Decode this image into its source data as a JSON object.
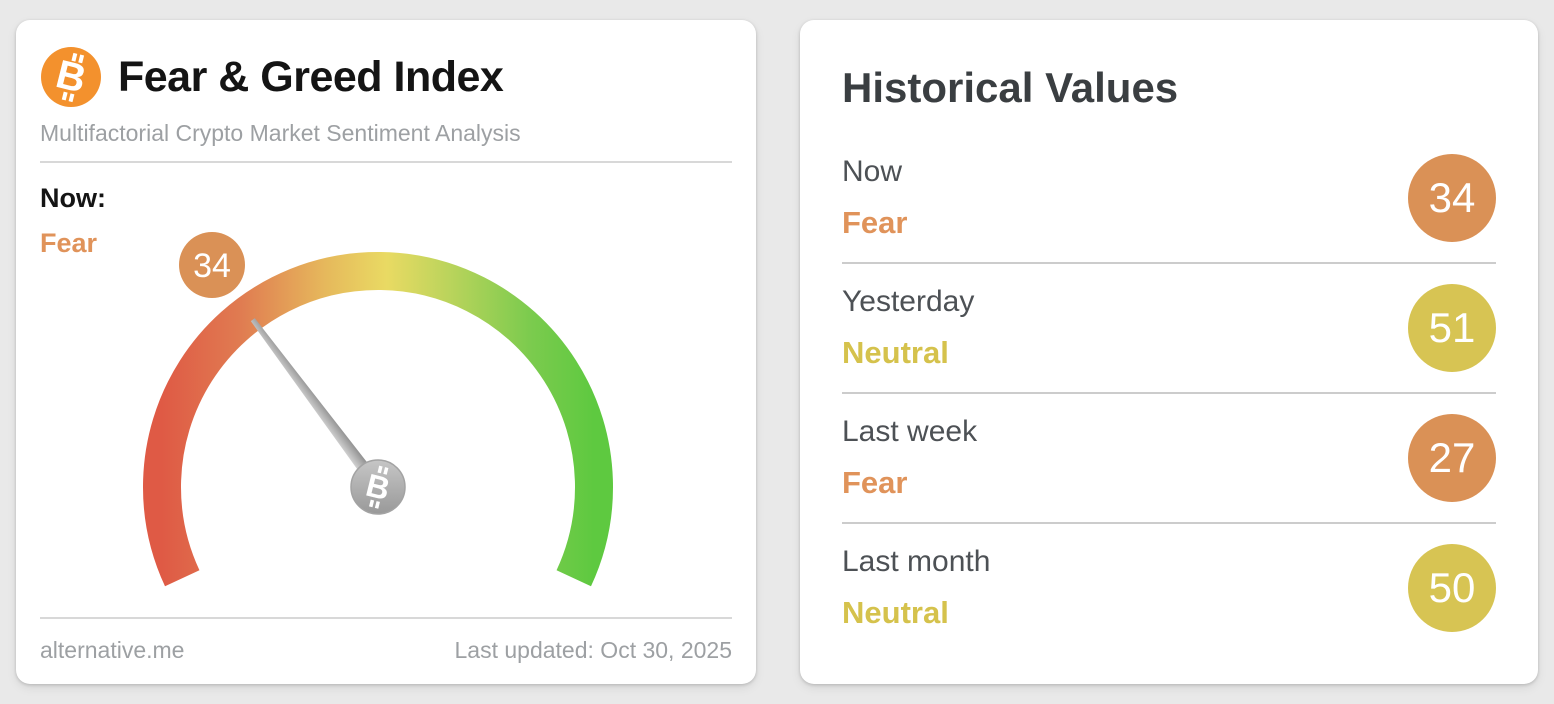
{
  "chart_data": {
    "type": "gauge",
    "title": "Fear & Greed Index",
    "subtitle": "Multifactorial Crypto Market Sentiment Analysis",
    "min": 0,
    "max": 100,
    "value": 34,
    "classification": "Fear",
    "scale_colors_left_to_right": [
      "#df5a45",
      "#e6b95c",
      "#e9da63",
      "#bcd45c",
      "#5ec940"
    ],
    "historical": [
      {
        "label": "Now",
        "classification": "Fear",
        "value": 34
      },
      {
        "label": "Yesterday",
        "classification": "Neutral",
        "value": 51
      },
      {
        "label": "Last week",
        "classification": "Fear",
        "value": 27
      },
      {
        "label": "Last month",
        "classification": "Neutral",
        "value": 50
      }
    ],
    "source": "alternative.me",
    "last_updated": "Oct 30, 2025"
  },
  "gauge_card": {
    "title": "Fear & Greed Index",
    "subtitle": "Multifactorial Crypto Market Sentiment Analysis",
    "now_label": "Now:",
    "now_classification": "Fear",
    "gauge_value": "34",
    "footer": {
      "source": "alternative.me",
      "last_updated": "Last updated: Oct 30, 2025"
    }
  },
  "historical_card": {
    "title": "Historical Values",
    "rows": [
      {
        "label": "Now",
        "classification": "Fear",
        "value": "34",
        "circle_color": "#da9156",
        "classification_color": "#e0935a"
      },
      {
        "label": "Yesterday",
        "classification": "Neutral",
        "value": "51",
        "circle_color": "#d7c453",
        "classification_color": "#d5c24c"
      },
      {
        "label": "Last week",
        "classification": "Fear",
        "value": "27",
        "circle_color": "#da9156",
        "classification_color": "#e0935a"
      },
      {
        "label": "Last month",
        "classification": "Neutral",
        "value": "50",
        "circle_color": "#d7c453",
        "classification_color": "#d5c24c"
      }
    ]
  },
  "colors": {
    "fear": "#e0935a",
    "neutral": "#d5c24c",
    "gauge_badge": "#da9156",
    "bitcoin_orange": "#f3912d"
  }
}
